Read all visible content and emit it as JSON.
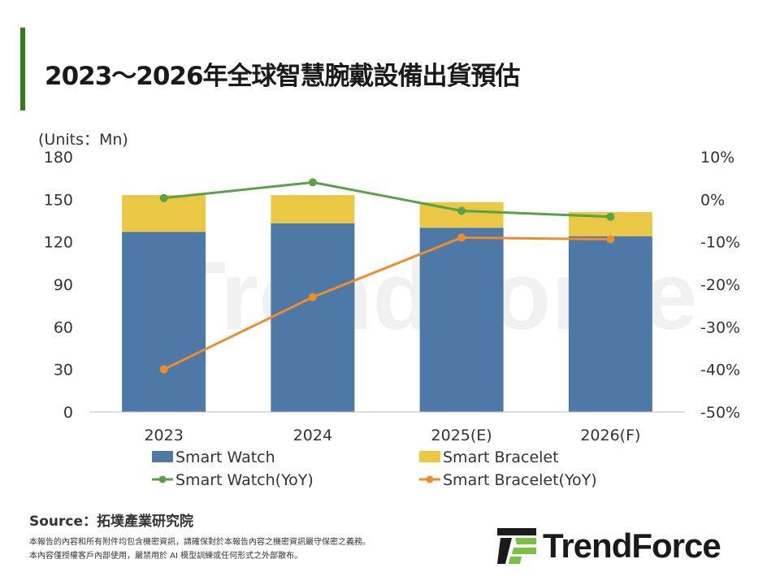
{
  "title": "2023～2026年全球智慧腕戴設備出貨預估",
  "unit_label": "(Units：Mn)",
  "source": "Source：拓墣產業研究院",
  "disclaimer": [
    "本報告的內容和所有附件均包含機密資訊，請確保對於本報告內容之機密資訊嚴守保密之義務。",
    "本內容僅授權客戶內部使用，嚴禁用於 AI 模型訓練或任何形式之外部散布。"
  ],
  "logo": "TrendForce",
  "watermark": "TrendForce",
  "chart_data": {
    "type": "bar",
    "stacked": true,
    "categories": [
      "2023",
      "2024",
      "2025(E)",
      "2026(F)"
    ],
    "ylabel": "(Units：Mn)",
    "ylim": [
      0,
      180
    ],
    "yticks": [
      "0",
      "30",
      "60",
      "90",
      "120",
      "150",
      "180"
    ],
    "y2lim": [
      -50,
      10
    ],
    "y2ticks": [
      "-50%",
      "-40%",
      "-30%",
      "-20%",
      "-10%",
      "0%",
      "10%"
    ],
    "legend_position": "bottom",
    "grid": false,
    "series": [
      {
        "name": "Smart Watch",
        "type": "bar",
        "axis": "left",
        "color": "#4e78a6",
        "values": [
          127,
          133,
          130,
          124
        ]
      },
      {
        "name": "Smart Bracelet",
        "type": "bar",
        "axis": "left",
        "color": "#eac744",
        "values": [
          26,
          20,
          18,
          17
        ]
      },
      {
        "name": "Smart Watch(YoY)",
        "type": "line",
        "axis": "right",
        "color": "#5aa148",
        "values": [
          0.3,
          4.0,
          -2.7,
          -4.1
        ]
      },
      {
        "name": "Smart Bracelet(YoY)",
        "type": "line",
        "axis": "right",
        "color": "#ef8c2b",
        "values": [
          -40,
          -23,
          -9,
          -9.4
        ]
      }
    ]
  }
}
